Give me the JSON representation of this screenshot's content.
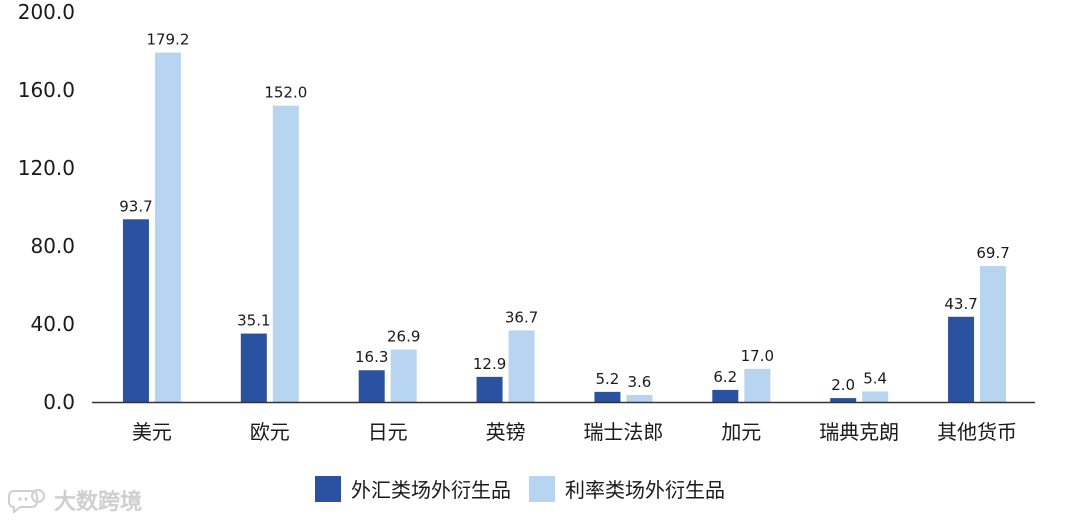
{
  "chart_data": {
    "type": "bar",
    "categories": [
      "美元",
      "欧元",
      "日元",
      "英镑",
      "瑞士法郎",
      "加元",
      "瑞典克朗",
      "其他货币"
    ],
    "series": [
      {
        "name": "外汇类场外衍生品",
        "color": "#2a52a0",
        "values": [
          93.7,
          35.1,
          16.3,
          12.9,
          5.2,
          6.2,
          2.0,
          43.7
        ],
        "labels": [
          "93.7",
          "35.1",
          "16.3",
          "12.9",
          "5.2",
          "6.2",
          "2.0",
          "43.7"
        ]
      },
      {
        "name": "利率类场外衍生品",
        "color": "#b7d4f0",
        "values": [
          179.2,
          152.0,
          26.9,
          36.7,
          3.6,
          17.0,
          5.4,
          69.7
        ],
        "labels": [
          "179.2",
          "152.0",
          "26.9",
          "36.7",
          "3.6",
          "17.0",
          "5.4",
          "69.7"
        ]
      }
    ],
    "ylim": [
      0,
      200
    ],
    "yticks": [
      "0.0",
      "40.0",
      "80.0",
      "120.0",
      "160.0",
      "200.0"
    ],
    "ytick_values": [
      0,
      40,
      80,
      120,
      160,
      200
    ],
    "grid": false,
    "legend": "bottom-center"
  },
  "watermark": {
    "text": "大数跨境",
    "icon": "chat-bubble-logo-icon"
  }
}
